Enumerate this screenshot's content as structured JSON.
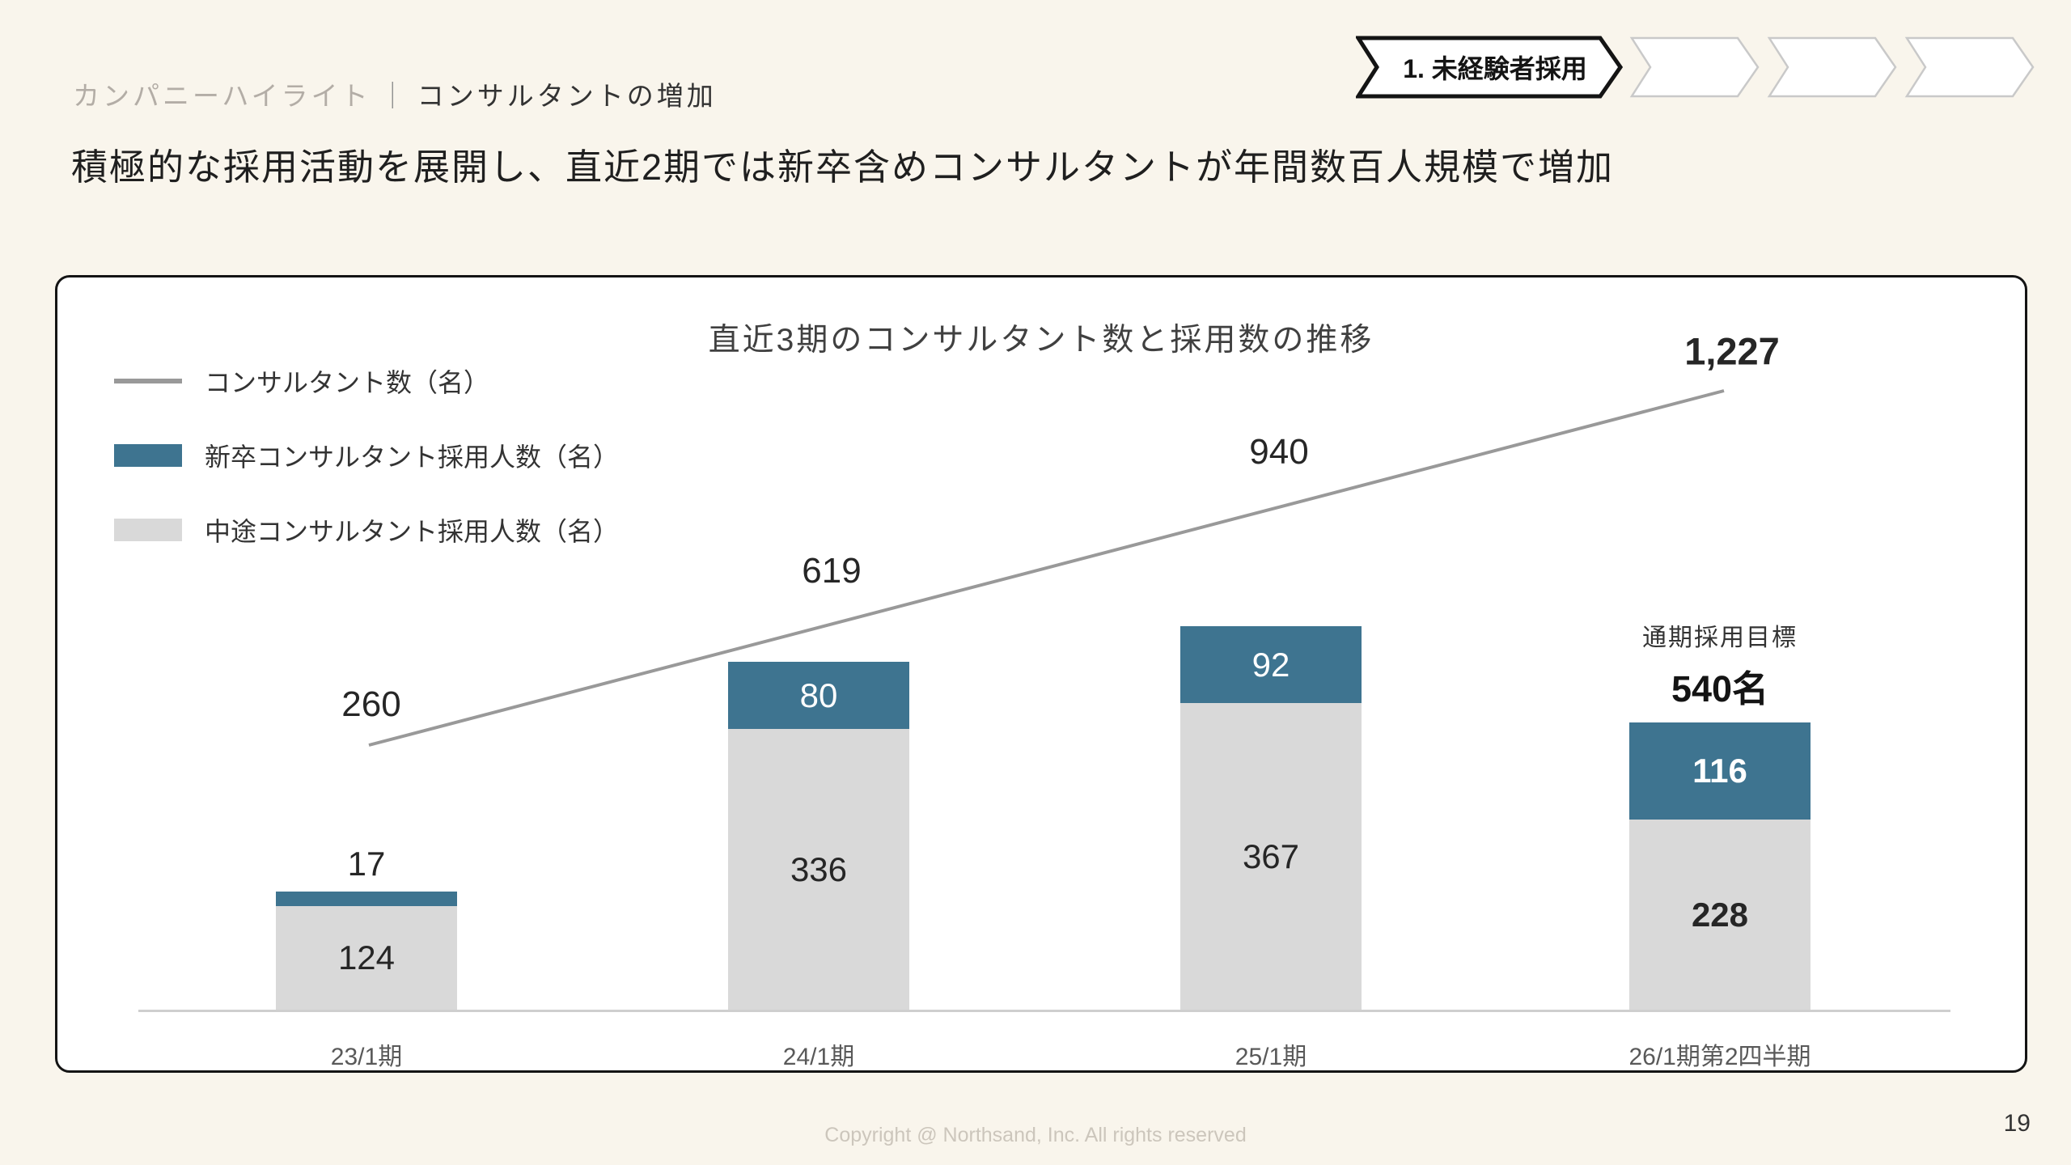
{
  "header": {
    "category": "カンパニーハイライト",
    "separator": "｜",
    "title": "コンサルタントの増加",
    "headline": "積極的な採用活動を展開し、直近2期では新卒含めコンサルタントが年間数百人規模で増加"
  },
  "steps": {
    "items": [
      {
        "label": "1. 未経験者採用",
        "active": true
      },
      {
        "label": "",
        "active": false
      },
      {
        "label": "",
        "active": false
      },
      {
        "label": "",
        "active": false
      }
    ]
  },
  "chart_data": {
    "type": "bar+line",
    "title": "直近3期のコンサルタント数と採用数の推移",
    "categories": [
      "23/1期",
      "24/1期",
      "25/1期",
      "26/1期第2四半期"
    ],
    "stacked": true,
    "legend_position": "top-left",
    "y_axis": "hidden",
    "line_series": {
      "name": "コンサルタント数（名）",
      "values": [
        260,
        619,
        940,
        1227
      ],
      "labels": [
        "260",
        "619",
        "940",
        "1,227"
      ],
      "color": "#999999"
    },
    "bar_series": [
      {
        "name": "新卒コンサルタント採用人数（名）",
        "values": [
          17,
          80,
          92,
          116
        ],
        "color": "#3e7490",
        "value_text_color": "#ffffff"
      },
      {
        "name": "中途コンサルタント採用人数（名）",
        "values": [
          124,
          336,
          367,
          228
        ],
        "color": "#d9d9d9",
        "value_text_color": "#262626"
      }
    ],
    "annotation": {
      "label": "通期採用目標",
      "value": "540名"
    }
  },
  "footer": {
    "copyright": "Copyright @ Northsand, Inc. All rights reserved",
    "page_number": "19"
  },
  "colors": {
    "background": "#f9f5ec",
    "card_background": "#ffffff",
    "card_border": "#141414",
    "accent_teal": "#3e7490",
    "bar_gray": "#d9d9d9",
    "line_gray": "#999999",
    "muted_text": "#b3ada6",
    "dark_text": "#1f1f1f",
    "axis_text": "#595959",
    "footer_text": "#ccc6bc"
  }
}
